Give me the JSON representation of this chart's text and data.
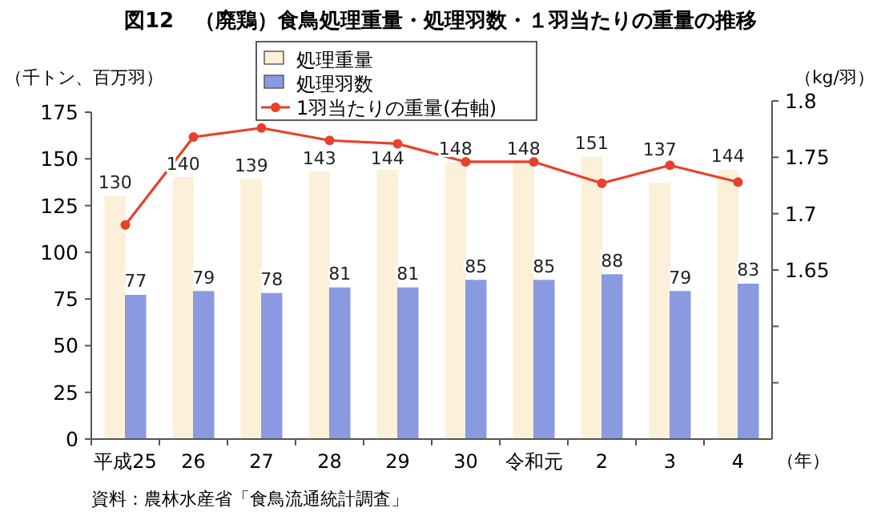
{
  "chart_data": {
    "type": "bar",
    "title": "図12　（廃鶏）食鳥処理重量・処理羽数・１羽当たりの重量の推移",
    "ylabel": "（千トン、百万羽）",
    "y2label": "（kg/羽）",
    "xlabel": "（年）",
    "categories": [
      "平成25",
      "26",
      "27",
      "28",
      "29",
      "30",
      "令和元",
      "2",
      "3",
      "4"
    ],
    "series": [
      {
        "name": "処理重量",
        "color": "#fdf0d8",
        "values": [
          130,
          140,
          139,
          143,
          144,
          148,
          148,
          151,
          137,
          144
        ],
        "value_labels": [
          "130",
          "140",
          "139",
          "143",
          "144",
          "148",
          "148",
          "151",
          "137",
          "144"
        ]
      },
      {
        "name": "処理羽数",
        "color": "#8a9ae0",
        "values": [
          77,
          79,
          78,
          81,
          81,
          85,
          85,
          88,
          79,
          83
        ],
        "value_labels": [
          "77",
          "79",
          "78",
          "81",
          "81",
          "85",
          "85",
          "88",
          "79",
          "83"
        ]
      },
      {
        "name": "1羽当たりの重量(右軸)",
        "type": "line",
        "axis": "y2",
        "color": "#e8402a",
        "marker": "circle",
        "values": [
          1.69,
          1.768,
          1.776,
          1.765,
          1.762,
          1.746,
          1.746,
          1.727,
          1.743,
          1.728
        ]
      }
    ],
    "ylim": [
      0,
      175
    ],
    "yticks": [
      0,
      25,
      50,
      75,
      100,
      125,
      150,
      175
    ],
    "y2lim": [
      1.5,
      1.8
    ],
    "y2ticks": [
      {
        "value": 1.55,
        "label": null
      },
      {
        "value": 1.6,
        "label": null
      },
      1.65,
      1.7,
      1.75,
      1.8
    ],
    "legend": "top",
    "grid": false,
    "annotations": [
      "資料：農林水産省「食鳥流通統計調査」"
    ]
  }
}
